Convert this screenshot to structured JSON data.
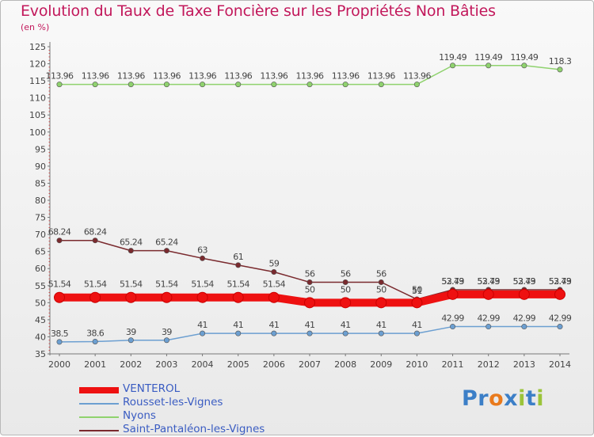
{
  "chart_data": {
    "type": "line",
    "title": "Evolution du Taux de Taxe Foncière sur les Propriétés Non Bâties",
    "unit_label": "(en %)",
    "x": [
      "2000",
      "2001",
      "2002",
      "2003",
      "2004",
      "2005",
      "2006",
      "2007",
      "2008",
      "2009",
      "2010",
      "2011",
      "2012",
      "2013",
      "2014"
    ],
    "ylim": [
      35,
      125
    ],
    "yticks": [
      35,
      40,
      45,
      50,
      55,
      60,
      65,
      70,
      75,
      80,
      85,
      90,
      95,
      100,
      105,
      110,
      115,
      120,
      125
    ],
    "grid": false,
    "legend_position": "bottom-left",
    "series": [
      {
        "name": "VENTEROL",
        "color": "#ee1111",
        "values": [
          51.54,
          51.54,
          51.54,
          51.54,
          51.54,
          51.54,
          51.54,
          50,
          50,
          50,
          50,
          52.43,
          52.43,
          52.43,
          52.43
        ],
        "labels": [
          "51.54",
          "51.54",
          "51.54",
          "51.54",
          "51.54",
          "51.54",
          "51.54",
          "50",
          "50",
          "50",
          "50",
          "52.43",
          "52.43",
          "52.43",
          "52.43"
        ]
      },
      {
        "name": "Rousset-les-Vignes",
        "color": "#6c9fd1",
        "values": [
          38.5,
          38.6,
          39,
          39,
          41,
          41,
          41,
          41,
          41,
          41,
          41,
          42.99,
          42.99,
          42.99,
          42.99
        ],
        "labels": [
          "38.5",
          "38.6",
          "39",
          "39",
          "41",
          "41",
          "41",
          "41",
          "41",
          "41",
          "41",
          "42.99",
          "42.99",
          "42.99",
          "42.99"
        ]
      },
      {
        "name": "Nyons",
        "color": "#8fd26e",
        "values": [
          113.96,
          113.96,
          113.96,
          113.96,
          113.96,
          113.96,
          113.96,
          113.96,
          113.96,
          113.96,
          113.96,
          119.49,
          119.49,
          119.49,
          118.3
        ],
        "labels": [
          "113.96",
          "113.96",
          "113.96",
          "113.96",
          "113.96",
          "113.96",
          "113.96",
          "113.96",
          "113.96",
          "113.96",
          "113.96",
          "119.49",
          "119.49",
          "119.49",
          "118.3"
        ]
      },
      {
        "name": "Saint-Pantaléon-les-Vignes",
        "color": "#7a2a2e",
        "values": [
          68.24,
          68.24,
          65.24,
          65.24,
          63,
          61,
          59,
          56,
          56,
          56,
          51,
          53.79,
          53.79,
          53.79,
          53.79
        ],
        "labels": [
          "68.24",
          "68.24",
          "65.24",
          "65.24",
          "63",
          "61",
          "59",
          "56",
          "56",
          "56",
          "51",
          "53.79",
          "53.79",
          "53.79",
          "53.79"
        ]
      }
    ]
  },
  "logo": {
    "text": "Proxiti"
  }
}
